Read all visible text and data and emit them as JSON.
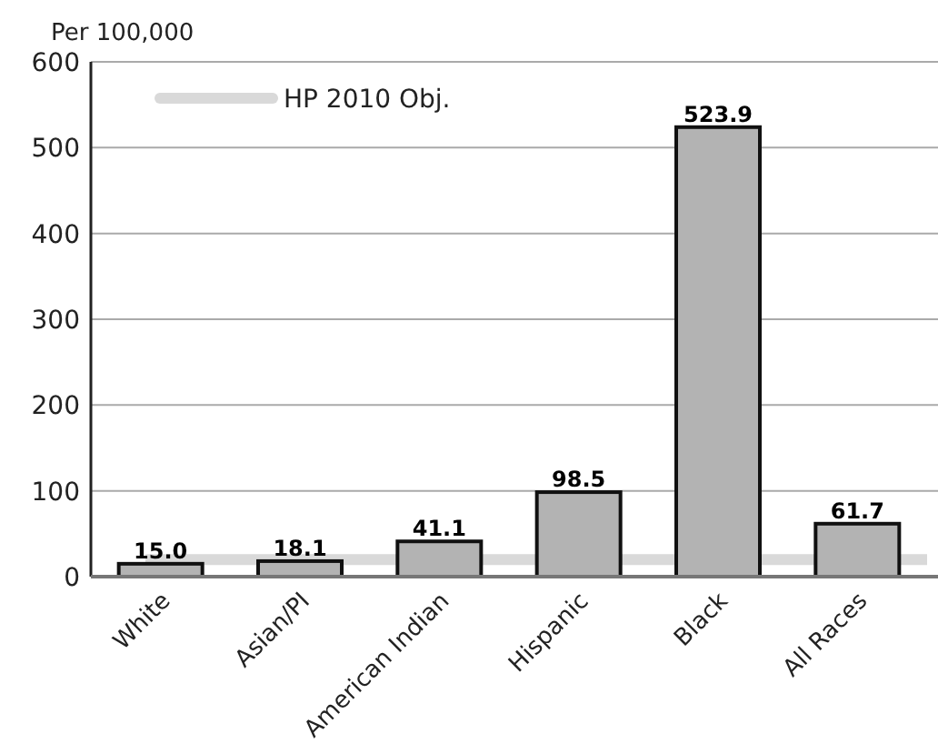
{
  "chart_data": {
    "type": "bar",
    "ylabel": "Per 100,000",
    "categories": [
      "White",
      "Asian/PI",
      "American Indian",
      "Hispanic",
      "Black",
      "All Races"
    ],
    "values": [
      15.0,
      18.1,
      41.1,
      98.5,
      523.9,
      61.7
    ],
    "color": "#b3b3b3",
    "ylim": [
      0,
      600
    ],
    "yticks": [
      0,
      100,
      200,
      300,
      400,
      500,
      600
    ],
    "grid": "y",
    "value_labels": [
      "15.0",
      "18.1",
      "41.1",
      "98.5",
      "523.9",
      "61.7"
    ],
    "ref_lines": [
      {
        "axis": "y",
        "value": 20,
        "label": "HP 2010 Obj.",
        "color": "#d9d9d9"
      }
    ],
    "legend": "top left"
  }
}
